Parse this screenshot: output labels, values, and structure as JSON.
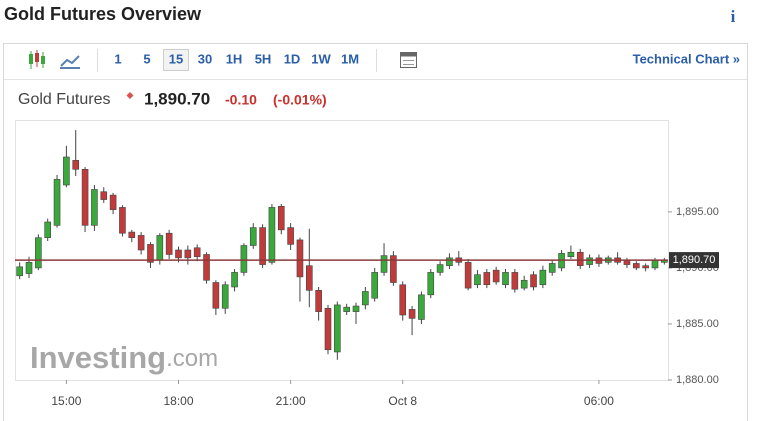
{
  "header": {
    "title": "Gold Futures Overview",
    "info_icon": "i"
  },
  "toolbar": {
    "intervals": [
      "1",
      "5",
      "15",
      "30",
      "1H",
      "5H",
      "1D",
      "1W",
      "1M"
    ],
    "selected_index": 2,
    "link": "Technical Chart »"
  },
  "quote": {
    "name": "Gold Futures",
    "price": "1,890.70",
    "change": "-0.10",
    "change_pct": "(-0.01%)"
  },
  "chart_data": {
    "type": "candlestick",
    "categories": [
      null,
      null,
      null,
      null,
      null,
      "15:00",
      null,
      null,
      null,
      null,
      null,
      null,
      null,
      null,
      null,
      null,
      null,
      "18:00",
      null,
      null,
      null,
      null,
      null,
      null,
      null,
      null,
      null,
      null,
      null,
      "21:00",
      null,
      null,
      null,
      null,
      null,
      null,
      null,
      null,
      null,
      null,
      null,
      "Oct 8",
      null,
      null,
      null,
      null,
      null,
      null,
      null,
      null,
      null,
      null,
      null,
      null,
      null,
      null,
      null,
      null,
      null,
      null,
      null,
      null,
      "06:00",
      null,
      null,
      null,
      null,
      null,
      null,
      null
    ],
    "open": [
      1889.3,
      1889.5,
      1890.0,
      1892.7,
      1893.8,
      1897.4,
      1899.6,
      1898.8,
      1893.8,
      1896.8,
      1896.5,
      1895.4,
      1893.2,
      1892.9,
      1892.1,
      1890.7,
      1893.1,
      1891.6,
      1891.6,
      1891.8,
      1891.2,
      1888.7,
      1886.4,
      1888.3,
      1889.6,
      1892.0,
      1893.6,
      1890.5,
      1895.5,
      1893.6,
      1892.5,
      1890.2,
      1888.0,
      1886.4,
      1882.5,
      1886.1,
      1886.1,
      1886.7,
      1887.3,
      1889.6,
      1891.1,
      1888.5,
      1886.3,
      1885.4,
      1887.6,
      1889.6,
      1890.2,
      1890.9,
      1890.5,
      1888.5,
      1889.6,
      1889.8,
      1888.5,
      1889.6,
      1888.2,
      1889.4,
      1888.5,
      1889.6,
      1890.0,
      1891.0,
      1891.4,
      1890.3,
      1890.9,
      1890.5,
      1890.9,
      1890.7,
      1890.4,
      1890.2,
      1890.0,
      1890.5
    ],
    "high": [
      1890.5,
      1891.0,
      1893.0,
      1894.4,
      1898.3,
      1900.9,
      1902.3,
      1899.0,
      1897.4,
      1897.2,
      1896.7,
      1895.6,
      1893.4,
      1893.2,
      1892.3,
      1893.1,
      1893.4,
      1891.9,
      1892.0,
      1892.1,
      1891.4,
      1888.9,
      1888.8,
      1889.9,
      1892.2,
      1894.0,
      1893.9,
      1895.7,
      1895.7,
      1894.0,
      1892.7,
      1893.5,
      1888.3,
      1886.7,
      1887.0,
      1886.8,
      1886.9,
      1888.3,
      1890.0,
      1892.2,
      1891.5,
      1888.8,
      1886.6,
      1887.9,
      1889.9,
      1890.6,
      1891.3,
      1891.5,
      1890.8,
      1889.8,
      1889.9,
      1890.1,
      1889.9,
      1889.9,
      1889.3,
      1889.7,
      1890.2,
      1890.7,
      1891.6,
      1892.0,
      1891.7,
      1891.2,
      1891.2,
      1891.1,
      1891.4,
      1890.9,
      1890.6,
      1890.4,
      1890.9,
      1890.9
    ],
    "low": [
      1889.0,
      1889.1,
      1889.8,
      1892.4,
      1893.6,
      1897.2,
      1898.2,
      1893.2,
      1893.3,
      1895.8,
      1894.8,
      1892.8,
      1892.3,
      1891.2,
      1890.0,
      1890.3,
      1890.8,
      1890.5,
      1890.3,
      1890.6,
      1888.6,
      1885.8,
      1885.9,
      1887.9,
      1889.3,
      1891.7,
      1890.0,
      1890.3,
      1893.0,
      1891.6,
      1887.0,
      1886.5,
      1885.3,
      1882.3,
      1881.8,
      1885.8,
      1885.0,
      1886.3,
      1887.0,
      1889.3,
      1888.4,
      1885.3,
      1884.0,
      1885.0,
      1887.3,
      1889.3,
      1889.9,
      1890.2,
      1888.0,
      1888.2,
      1888.2,
      1888.5,
      1888.2,
      1887.8,
      1888.0,
      1888.0,
      1888.2,
      1889.3,
      1889.7,
      1890.8,
      1889.9,
      1890.0,
      1890.1,
      1890.3,
      1890.3,
      1890.0,
      1889.8,
      1889.7,
      1889.8,
      1890.3
    ],
    "close": [
      1890.1,
      1890.5,
      1892.7,
      1894.1,
      1897.9,
      1899.9,
      1898.8,
      1893.8,
      1897.0,
      1896.1,
      1895.2,
      1893.1,
      1892.7,
      1891.6,
      1890.5,
      1892.9,
      1891.2,
      1890.9,
      1890.9,
      1891.0,
      1888.9,
      1886.4,
      1888.5,
      1889.6,
      1892.0,
      1893.6,
      1890.3,
      1895.4,
      1893.4,
      1892.1,
      1889.2,
      1888.0,
      1886.1,
      1882.7,
      1886.7,
      1886.5,
      1886.6,
      1887.9,
      1889.6,
      1891.1,
      1888.7,
      1885.8,
      1885.5,
      1887.6,
      1889.6,
      1890.3,
      1890.9,
      1890.5,
      1888.2,
      1889.4,
      1888.5,
      1888.75,
      1889.6,
      1888.1,
      1888.9,
      1888.3,
      1889.8,
      1890.4,
      1891.3,
      1891.4,
      1890.2,
      1890.9,
      1890.4,
      1890.9,
      1890.5,
      1890.3,
      1890.0,
      1890.0,
      1890.7,
      1890.7
    ],
    "up_color": "#3aa83a",
    "down_color": "#c23b3b",
    "ylim": [
      1880,
      1903.2
    ],
    "yticks": [
      {
        "value": 1880,
        "label": "1,880.00"
      },
      {
        "value": 1885,
        "label": "1,885.00"
      },
      {
        "value": 1890,
        "label": "1,890.00"
      },
      {
        "value": 1895,
        "label": "1,895.00"
      }
    ],
    "price_line": {
      "value": 1890.7,
      "label": "1,890.70",
      "color": "#8b3a3a"
    },
    "watermark": [
      "Investing",
      ".com"
    ]
  }
}
